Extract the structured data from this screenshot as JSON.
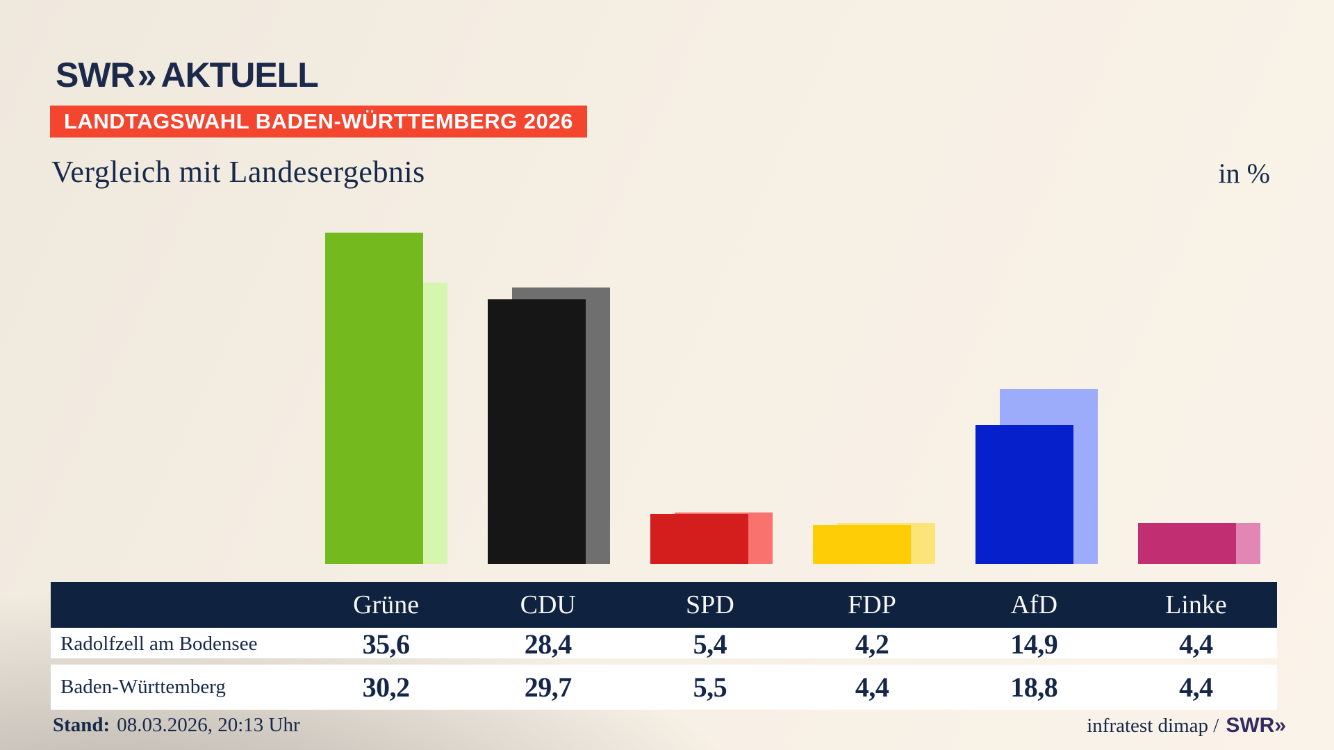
{
  "logo": {
    "brand": "SWR",
    "chevrons": "»",
    "section": "AKTUELL"
  },
  "badge": {
    "text": "LANDTAGSWAHL BADEN-WÜRTTEMBERG 2026"
  },
  "chart_data": {
    "type": "bar",
    "title": "Vergleich mit Landesergebnis",
    "unit_label": "in %",
    "categories": [
      "Grüne",
      "CDU",
      "SPD",
      "FDP",
      "AfD",
      "Linke"
    ],
    "series": [
      {
        "name": "Radolfzell am Bodensee",
        "values": [
          35.6,
          28.4,
          5.4,
          4.2,
          14.9,
          4.4
        ],
        "colors": [
          "#74ba1e",
          "#161616",
          "#d41e1e",
          "#ffcd05",
          "#0621cb",
          "#c22e72"
        ]
      },
      {
        "name": "Baden-Württemberg",
        "values": [
          30.2,
          29.7,
          5.5,
          4.4,
          18.8,
          4.4
        ],
        "colors": [
          "#d6f6b0",
          "#6f6f6f",
          "#f9726d",
          "#fce479",
          "#9cabfa",
          "#e286b4"
        ]
      }
    ],
    "ylim": [
      0,
      37
    ],
    "grid": false,
    "legend_position": "none (values shown in table below)"
  },
  "table": {
    "header": [
      "Grüne",
      "CDU",
      "SPD",
      "FDP",
      "AfD",
      "Linke"
    ],
    "rows": [
      {
        "label": "Radolfzell am Bodensee",
        "values": [
          "35,6",
          "28,4",
          "5,4",
          "4,2",
          "14,9",
          "4,4"
        ]
      },
      {
        "label": "Baden-Württemberg",
        "values": [
          "30,2",
          "29,7",
          "5,5",
          "4,4",
          "18,8",
          "4,4"
        ]
      }
    ]
  },
  "footer": {
    "stand_label": "Stand:",
    "stand_value": "08.03.2026, 20:13 Uhr",
    "source": "infratest dimap /",
    "brand": "SWR",
    "brand_chevron": "»"
  },
  "ui_colors": {
    "badge_red": "#f4452f",
    "header_navy": "#0f2240",
    "text_navy": "#17294b",
    "brand_purple": "#332b63",
    "background_beige": "#f6efe4"
  }
}
